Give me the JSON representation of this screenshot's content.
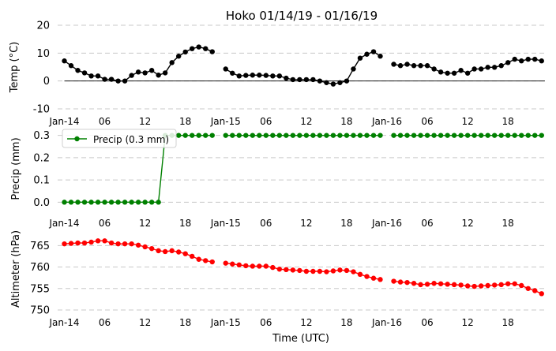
{
  "chart_data": [
    {
      "type": "line",
      "id": "temp",
      "title": "Hoko 01/14/19 - 01/16/19",
      "ylabel": "Temp ($^\\circ$C)",
      "ylabel_text": "Temp (",
      "ylabel_unit": "°C)",
      "ylim": [
        -10,
        20
      ],
      "yticks": [
        "-10",
        "0",
        "10",
        "20"
      ],
      "ytick_values": [
        -10,
        0,
        10,
        20
      ],
      "grid": true,
      "zero_line": true,
      "color": "#000000",
      "x_start_hour": 0,
      "x_step_hours": 1,
      "values": [
        7.2,
        5.5,
        3.8,
        2.9,
        1.8,
        1.8,
        0.6,
        0.6,
        0.0,
        0.0,
        2.0,
        3.2,
        2.9,
        3.8,
        2.1,
        2.9,
        6.6,
        8.9,
        10.4,
        11.6,
        12.2,
        11.6,
        10.5,
        null,
        4.3,
        2.8,
        1.8,
        2.0,
        2.1,
        2.1,
        2.0,
        1.8,
        1.8,
        1.0,
        0.5,
        0.5,
        0.5,
        0.5,
        0.0,
        -0.6,
        -1.1,
        -0.6,
        0.0,
        4.3,
        8.2,
        9.6,
        10.5,
        8.9,
        null,
        6.0,
        5.5,
        6.0,
        5.5,
        5.5,
        5.5,
        4.3,
        3.2,
        2.8,
        2.8,
        3.8,
        2.8,
        4.3,
        4.3,
        4.9,
        4.9,
        5.5,
        6.6,
        7.8,
        7.2,
        7.8,
        7.8,
        7.2
      ]
    },
    {
      "type": "line",
      "id": "precip",
      "ylabel": "Precip (mm)",
      "ylim": [
        -0.02,
        0.32
      ],
      "yticks": [
        "0.0",
        "0.1",
        "0.2",
        "0.3"
      ],
      "ytick_values": [
        0.0,
        0.1,
        0.2,
        0.3
      ],
      "grid": true,
      "color": "#008000",
      "legend": "Precip (0.3 mm)",
      "legend_position": "top-left",
      "x_start_hour": 0,
      "x_step_hours": 1,
      "values": [
        0,
        0,
        0,
        0,
        0,
        0,
        0,
        0,
        0,
        0,
        0,
        0,
        0,
        0,
        0,
        0.3,
        0.3,
        0.3,
        0.3,
        0.3,
        0.3,
        0.3,
        0.3,
        null,
        0.3,
        0.3,
        0.3,
        0.3,
        0.3,
        0.3,
        0.3,
        0.3,
        0.3,
        0.3,
        0.3,
        0.3,
        0.3,
        0.3,
        0.3,
        0.3,
        0.3,
        0.3,
        0.3,
        0.3,
        0.3,
        0.3,
        0.3,
        0.3,
        null,
        0.3,
        0.3,
        0.3,
        0.3,
        0.3,
        0.3,
        0.3,
        0.3,
        0.3,
        0.3,
        0.3,
        0.3,
        0.3,
        0.3,
        0.3,
        0.3,
        0.3,
        0.3,
        0.3,
        0.3,
        0.3,
        0.3,
        0.3
      ]
    },
    {
      "type": "line",
      "id": "altimeter",
      "ylabel": "Altimeter (hPa)",
      "xlabel": "Time (UTC)",
      "ylim": [
        750,
        768
      ],
      "yticks": [
        "750",
        "755",
        "760",
        "765"
      ],
      "ytick_values": [
        750,
        755,
        760,
        765
      ],
      "grid": true,
      "color": "#ff0000",
      "x_start_hour": 0,
      "x_step_hours": 1,
      "values": [
        765.4,
        765.5,
        765.6,
        765.6,
        765.8,
        766.1,
        766.1,
        765.6,
        765.4,
        765.4,
        765.4,
        765.1,
        764.7,
        764.3,
        763.8,
        763.6,
        763.8,
        763.5,
        763.1,
        762.5,
        761.8,
        761.5,
        761.2,
        null,
        760.9,
        760.7,
        760.5,
        760.3,
        760.2,
        760.2,
        760.2,
        759.9,
        759.5,
        759.4,
        759.3,
        759.2,
        759.0,
        759.0,
        759.0,
        758.9,
        759.1,
        759.3,
        759.2,
        758.9,
        758.3,
        757.8,
        757.4,
        757.1,
        null,
        756.7,
        756.5,
        756.4,
        756.2,
        755.9,
        756.0,
        756.2,
        756.1,
        756.0,
        755.9,
        755.8,
        755.6,
        755.5,
        755.6,
        755.7,
        755.8,
        755.9,
        756.1,
        756.1,
        755.7,
        755.0,
        754.5,
        753.8
      ]
    }
  ],
  "x_axis": {
    "domain_hours": [
      -1,
      71.5
    ],
    "ticks": [
      {
        "label": "Jan-14",
        "hour": 0
      },
      {
        "label": "06",
        "hour": 6
      },
      {
        "label": "12",
        "hour": 12
      },
      {
        "label": "18",
        "hour": 18
      },
      {
        "label": "Jan-15",
        "hour": 24
      },
      {
        "label": "06",
        "hour": 30
      },
      {
        "label": "12",
        "hour": 36
      },
      {
        "label": "18",
        "hour": 42
      },
      {
        "label": "Jan-16",
        "hour": 48
      },
      {
        "label": "06",
        "hour": 54
      },
      {
        "label": "12",
        "hour": 60
      },
      {
        "label": "18",
        "hour": 66
      }
    ]
  }
}
